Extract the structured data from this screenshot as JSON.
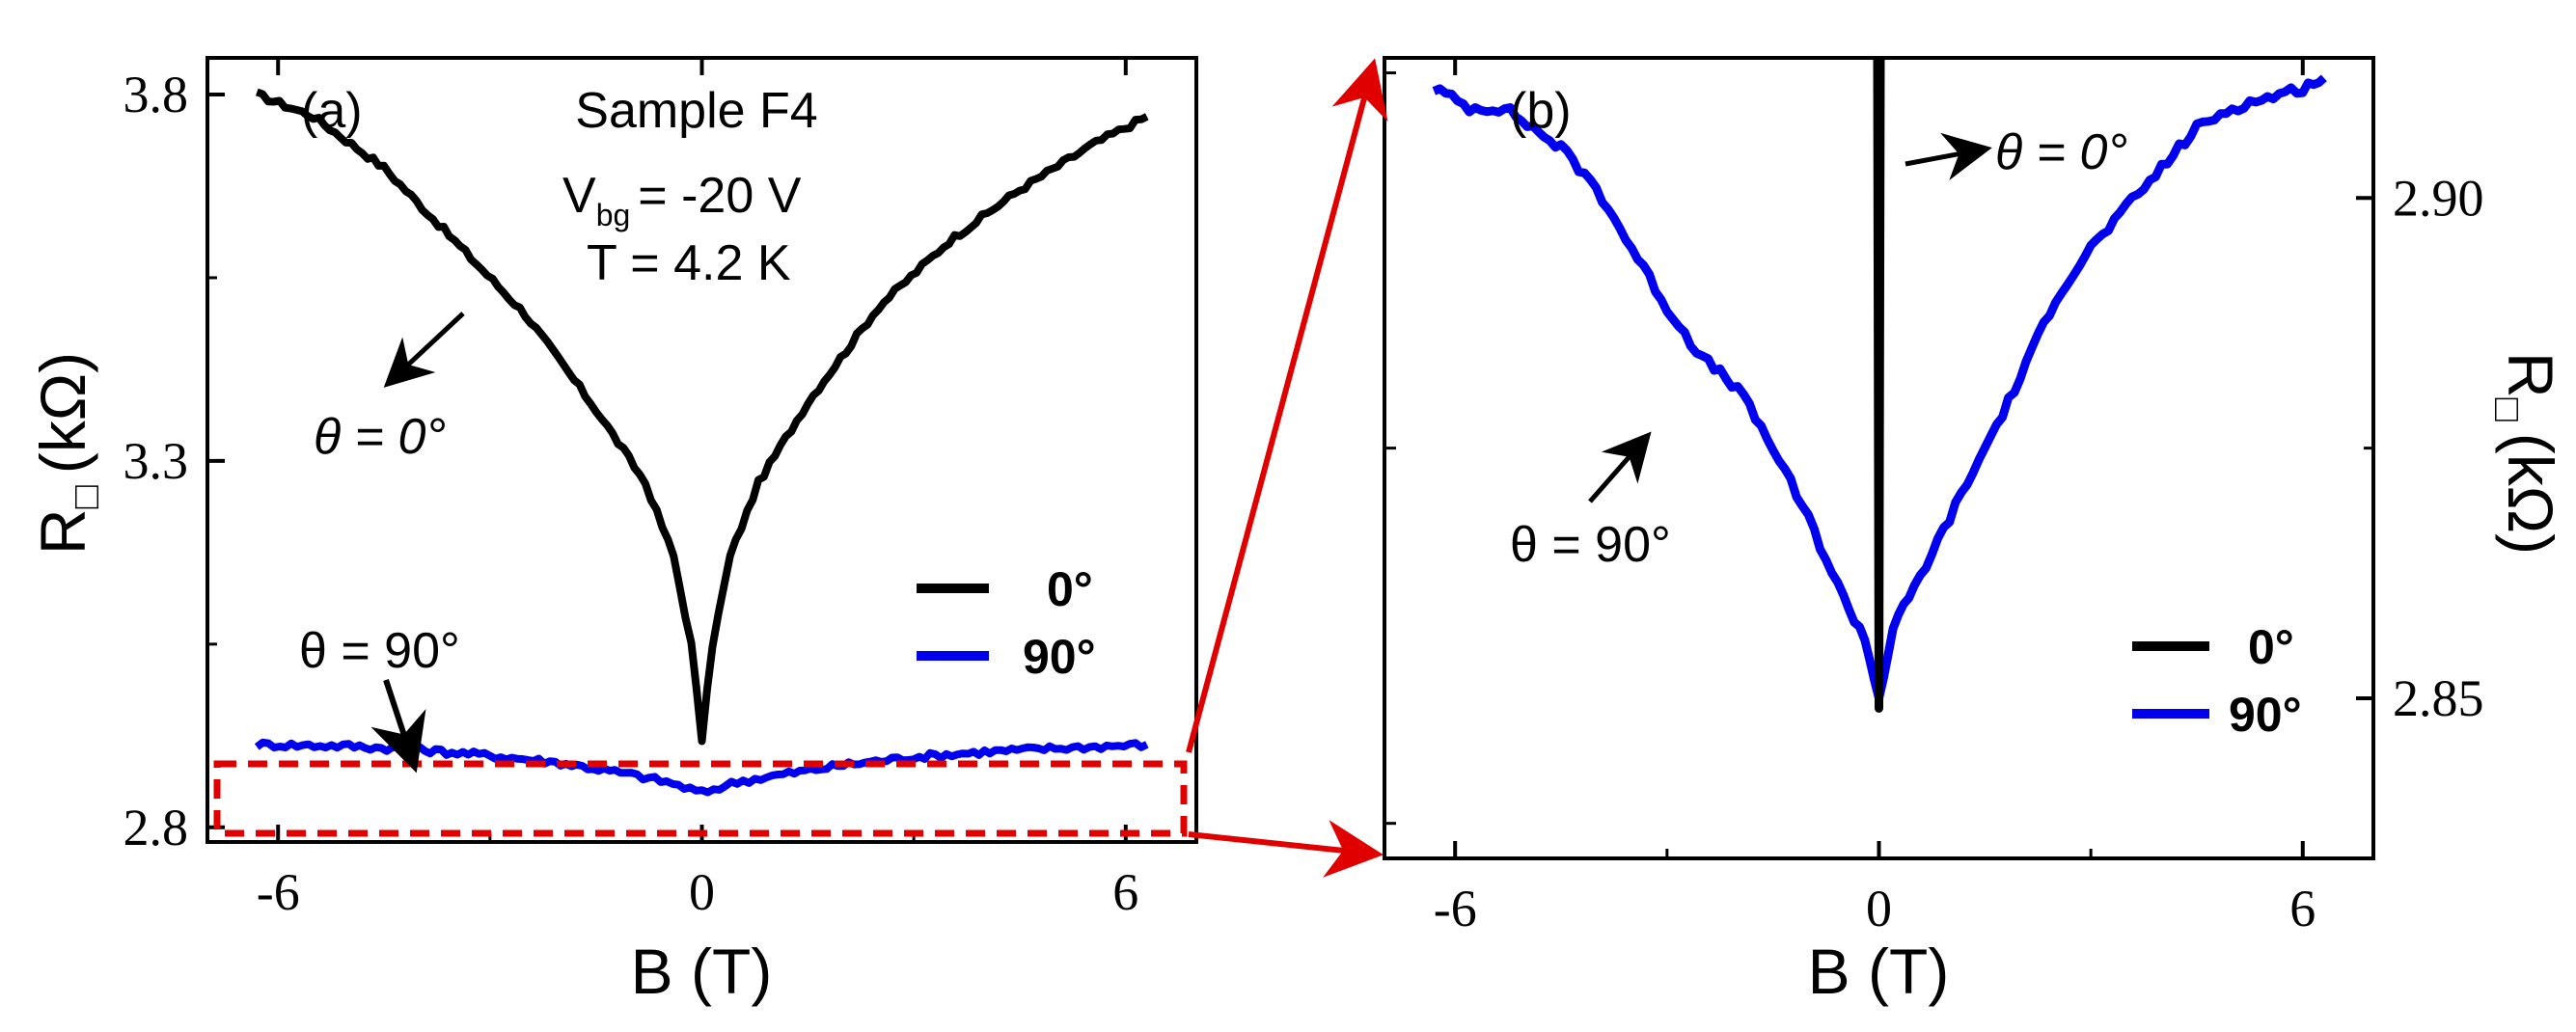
{
  "chart_data": [
    {
      "type": "line",
      "panel_label": "(a)",
      "xlabel": "B (T)",
      "ylabel_main": "R",
      "ylabel_sub": "□",
      "ylabel_unit": "(kΩ)",
      "xlim": [
        -7,
        7
      ],
      "ylim": [
        2.78,
        3.85
      ],
      "xticks": [
        -6,
        0,
        6
      ],
      "xtick_labels": [
        "-6",
        "0",
        "6"
      ],
      "yticks": [
        2.8,
        3.3,
        3.8
      ],
      "ytick_labels": [
        "2.8",
        "3.3",
        "3.8"
      ],
      "annotation_lines": [
        "Sample F4",
        "V",
        "bg",
        "= -20 V",
        "T  = 4.2 K"
      ],
      "theta0_label": "θ = 0°",
      "theta90_label": "θ = 90°",
      "legend": [
        {
          "label": "0°",
          "color": "#000000"
        },
        {
          "label": "90°",
          "color": "#0000ee"
        }
      ],
      "legend_placement": "center-right",
      "grid": false,
      "series": [
        {
          "name": "0°",
          "color": "#000000",
          "x": [
            -6.3,
            -5.5,
            -4.5,
            -3.5,
            -2.5,
            -1.5,
            -0.8,
            -0.4,
            -0.15,
            0,
            0.15,
            0.4,
            0.8,
            1.5,
            2.5,
            3.5,
            4.5,
            5.5,
            6.3
          ],
          "y": [
            3.8,
            3.77,
            3.7,
            3.6,
            3.5,
            3.37,
            3.27,
            3.17,
            3.05,
            2.92,
            3.05,
            3.17,
            3.27,
            3.38,
            3.51,
            3.6,
            3.67,
            3.73,
            3.77
          ]
        },
        {
          "name": "90°",
          "color": "#0000ee",
          "x": [
            -6.3,
            -5,
            -4,
            -3,
            -2,
            -1,
            -0.5,
            0,
            0.5,
            1,
            2,
            3,
            4,
            5,
            6.3
          ],
          "y": [
            2.913,
            2.911,
            2.906,
            2.898,
            2.888,
            2.872,
            2.862,
            2.847,
            2.862,
            2.87,
            2.885,
            2.896,
            2.903,
            2.908,
            2.913
          ]
        }
      ]
    },
    {
      "type": "line",
      "panel_label": "(b)",
      "xlabel": "B (T)",
      "ylabel_main": "R",
      "ylabel_sub": "□",
      "ylabel_unit": "(kΩ)",
      "xlim": [
        -7,
        7
      ],
      "ylim": [
        2.834,
        2.914
      ],
      "xticks": [
        -6,
        0,
        6
      ],
      "xtick_labels": [
        "-6",
        "0",
        "6"
      ],
      "yticks": [
        2.85,
        2.9
      ],
      "ytick_labels": [
        "2.85",
        "2.90"
      ],
      "theta0_label": "θ = 0°",
      "theta90_label": "θ = 90°",
      "legend": [
        {
          "label": "0°",
          "color": "#000000"
        },
        {
          "label": "90°",
          "color": "#0000ee"
        }
      ],
      "legend_placement": "bottom-right",
      "grid": false,
      "series": [
        {
          "name": "90°",
          "color": "#0000ee",
          "x": [
            -6.3,
            -5.8,
            -5.3,
            -4.5,
            -4.0,
            -3.5,
            -3.0,
            -2.5,
            -2.0,
            -1.5,
            -1.0,
            -0.5,
            -0.2,
            0,
            0.2,
            0.5,
            1.0,
            1.5,
            2.0,
            2.5,
            3.0,
            3.5,
            4.0,
            4.5,
            5.0,
            5.5,
            6.0,
            6.3
          ],
          "y": [
            2.911,
            2.909,
            2.909,
            2.905,
            2.901,
            2.895,
            2.889,
            2.884,
            2.881,
            2.875,
            2.868,
            2.86,
            2.856,
            2.85,
            2.857,
            2.861,
            2.868,
            2.875,
            2.882,
            2.89,
            2.895,
            2.899,
            2.903,
            2.907,
            2.909,
            2.91,
            2.911,
            2.912
          ]
        },
        {
          "name": "0°",
          "color": "#000000",
          "x": [
            -0.02,
            0,
            0.02
          ],
          "y": [
            2.914,
            2.849,
            2.914
          ]
        }
      ]
    }
  ]
}
